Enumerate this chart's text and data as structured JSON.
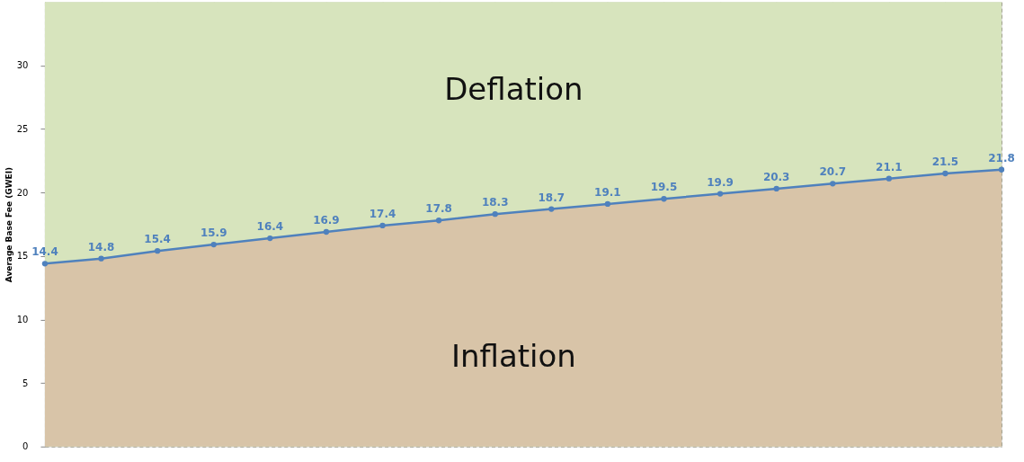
{
  "chart_data": {
    "type": "line",
    "ylabel": "Average Base Fee (GWEI)",
    "categories": [
      null,
      null,
      null,
      null,
      null,
      null,
      null,
      null,
      null,
      null,
      null,
      null,
      null,
      null,
      null,
      null,
      null,
      null
    ],
    "series": [
      {
        "type": "area",
        "color": "#d8c4a8",
        "values": [
          14.4,
          14.8,
          15.4,
          15.9,
          16.4,
          16.9,
          17.4,
          17.8,
          18.3,
          18.7,
          19.1,
          19.5,
          19.9,
          20.3,
          20.7,
          21.1,
          21.5,
          21.8
        ]
      },
      {
        "color": "#4f81bd",
        "marker": "circle",
        "values": [
          14.4,
          14.8,
          15.4,
          15.9,
          16.4,
          16.9,
          17.4,
          17.8,
          18.3,
          18.7,
          19.1,
          19.5,
          19.9,
          20.3,
          20.7,
          21.1,
          21.5,
          21.8
        ],
        "value_labels": [
          "14.4",
          "14.8",
          "15.4",
          "15.9",
          "16.4",
          "16.9",
          "17.4",
          "17.8",
          "18.3",
          "18.7",
          "19.1",
          "19.5",
          "19.9",
          "20.3",
          "20.7",
          "21.1",
          "21.5",
          "21.8"
        ]
      }
    ],
    "bands": [
      {
        "axis": "y",
        "from": 0,
        "to": 35,
        "color": "#d7e4bd"
      }
    ],
    "annotations": [
      "Deflation",
      "Inflation"
    ],
    "ylim": [
      0,
      35
    ],
    "yticks": [
      0,
      5,
      10,
      15,
      20,
      25,
      30
    ],
    "grid": true,
    "line_style": "solid",
    "tick_labels": "y"
  }
}
